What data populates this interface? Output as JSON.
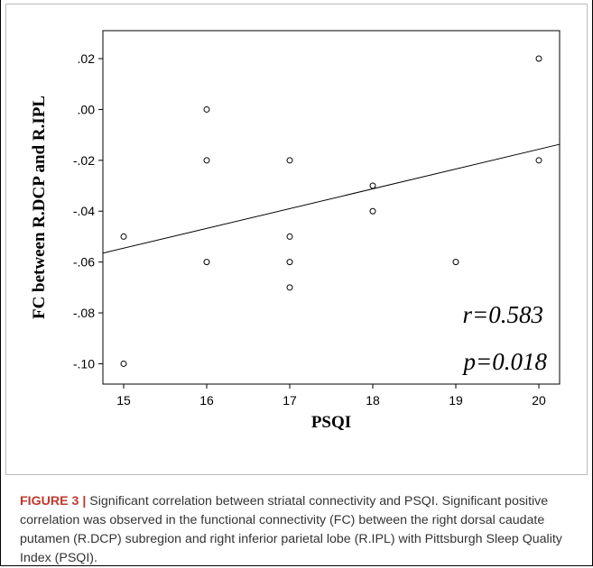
{
  "chart_data": {
    "type": "scatter",
    "xlabel": "PSQI",
    "ylabel": "FC between R.DCP and R.IPL",
    "xlim": [
      14.75,
      20.25
    ],
    "ylim": [
      -0.108,
      0.031
    ],
    "x_ticks": [
      15,
      16,
      17,
      18,
      19,
      20
    ],
    "x_tick_labels": [
      "15",
      "16",
      "17",
      "18",
      "19",
      "20"
    ],
    "y_ticks": [
      0.02,
      0.0,
      -0.02,
      -0.04,
      -0.06,
      -0.08,
      -0.1
    ],
    "y_tick_labels": [
      ".02",
      ".00",
      "-.02",
      "-.04",
      "-.06",
      "-.08",
      "-.10"
    ],
    "points": [
      {
        "x": 15,
        "y": -0.05
      },
      {
        "x": 15,
        "y": -0.1
      },
      {
        "x": 16,
        "y": 0.0
      },
      {
        "x": 16,
        "y": -0.02
      },
      {
        "x": 16,
        "y": -0.06
      },
      {
        "x": 17,
        "y": -0.02
      },
      {
        "x": 17,
        "y": -0.05
      },
      {
        "x": 17,
        "y": -0.06
      },
      {
        "x": 17,
        "y": -0.07
      },
      {
        "x": 18,
        "y": -0.03
      },
      {
        "x": 18,
        "y": -0.04
      },
      {
        "x": 19,
        "y": -0.06
      },
      {
        "x": 20,
        "y": 0.02
      },
      {
        "x": 20,
        "y": -0.02
      }
    ],
    "fit_line": {
      "x": [
        14.75,
        20.25
      ],
      "y": [
        -0.0565,
        -0.0137
      ]
    },
    "annotations": [
      "r=0.583",
      "p=0.018"
    ],
    "grid": false,
    "legend": "none"
  },
  "caption": {
    "label": "FIGURE 3 |",
    "text": "Significant correlation between striatal connectivity and PSQI. Significant positive correlation was observed in the functional connectivity (FC) between the right dorsal caudate putamen (R.DCP) subregion and right inferior parietal lobe (R.IPL) with Pittsburgh Sleep Quality Index (PSQI)."
  }
}
